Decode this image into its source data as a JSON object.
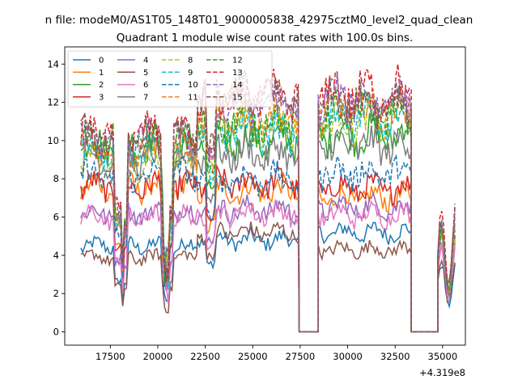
{
  "figure": {
    "suptitle": "n file: modeM0/AS1T05_148T01_9000005838_42975cztM0_level2_quad_clean",
    "offset_text": "+4.319e8"
  },
  "chart_data": {
    "type": "line",
    "title": "Quadrant 1 module wise count rates with 100.0s bins.",
    "xlabel": "",
    "ylabel": "",
    "x_offset": 431900000,
    "xlim": [
      15100,
      36200
    ],
    "ylim": [
      -0.7,
      14.9
    ],
    "x_ticks": [
      17500,
      20000,
      22500,
      25000,
      27500,
      30000,
      32500,
      35000
    ],
    "x_tick_labels": [
      "17500",
      "20000",
      "22500",
      "25000",
      "27500",
      "30000",
      "32500",
      "35000"
    ],
    "y_ticks": [
      0,
      2,
      4,
      6,
      8,
      10,
      12,
      14
    ],
    "y_tick_labels": [
      "0",
      "2",
      "4",
      "6",
      "8",
      "10",
      "12",
      "14"
    ],
    "grid": false,
    "legend": {
      "placement": "top-left",
      "columns": 4
    },
    "segment_bounds": [
      [
        15950,
        22100
      ],
      [
        22100,
        27450
      ],
      [
        27450,
        28450
      ],
      [
        28450,
        33350
      ],
      [
        33350,
        34750
      ],
      [
        34750,
        35650
      ]
    ],
    "series": [
      {
        "name": "0",
        "color": "#1f77b4",
        "dash": false,
        "levels": [
          4.5,
          4.8,
          0,
          5.2,
          0,
          3.5
        ]
      },
      {
        "name": "1",
        "color": "#ff7f0e",
        "dash": false,
        "levels": [
          7.6,
          7.4,
          0,
          7.0,
          0,
          5.3
        ]
      },
      {
        "name": "2",
        "color": "#2ca02c",
        "dash": false,
        "levels": [
          9.8,
          10.0,
          0,
          10.3,
          0,
          5.2
        ]
      },
      {
        "name": "3",
        "color": "#d62728",
        "dash": false,
        "levels": [
          7.6,
          7.8,
          0,
          7.5,
          0,
          5.4
        ]
      },
      {
        "name": "4",
        "color": "#9467bd",
        "dash": false,
        "levels": [
          6.2,
          6.4,
          0,
          6.5,
          0,
          4.8
        ]
      },
      {
        "name": "5",
        "color": "#8c564b",
        "dash": false,
        "levels": [
          3.9,
          5.2,
          0,
          4.3,
          0,
          3.8
        ]
      },
      {
        "name": "6",
        "color": "#e377c2",
        "dash": false,
        "levels": [
          6.0,
          6.2,
          0,
          6.1,
          0,
          4.6
        ]
      },
      {
        "name": "7",
        "color": "#7f7f7f",
        "dash": false,
        "levels": [
          9.0,
          9.3,
          0,
          9.7,
          0,
          5.1
        ]
      },
      {
        "name": "8",
        "color": "#bcbd22",
        "dash": true,
        "levels": [
          8.9,
          10.8,
          0,
          11.0,
          0,
          5.4
        ]
      },
      {
        "name": "9",
        "color": "#17becf",
        "dash": true,
        "levels": [
          9.5,
          10.5,
          0,
          11.3,
          0,
          5.5
        ]
      },
      {
        "name": "10",
        "color": "#1f77b4",
        "dash": true,
        "levels": [
          8.2,
          8.0,
          0,
          8.3,
          0,
          5.6
        ]
      },
      {
        "name": "11",
        "color": "#ff7f0e",
        "dash": true,
        "levels": [
          9.6,
          11.2,
          0,
          11.6,
          0,
          5.8
        ]
      },
      {
        "name": "12",
        "color": "#2ca02c",
        "dash": true,
        "levels": [
          9.9,
          11.0,
          0,
          11.4,
          0,
          5.7
        ]
      },
      {
        "name": "13",
        "color": "#d62728",
        "dash": true,
        "levels": [
          10.4,
          12.2,
          0,
          12.5,
          0,
          6.3
        ]
      },
      {
        "name": "14",
        "color": "#9467bd",
        "dash": true,
        "levels": [
          10.0,
          12.0,
          0,
          12.2,
          0,
          6.0
        ]
      },
      {
        "name": "15",
        "color": "#8c564b",
        "dash": true,
        "levels": [
          10.1,
          12.4,
          0,
          12.0,
          0,
          6.1
        ]
      }
    ]
  }
}
